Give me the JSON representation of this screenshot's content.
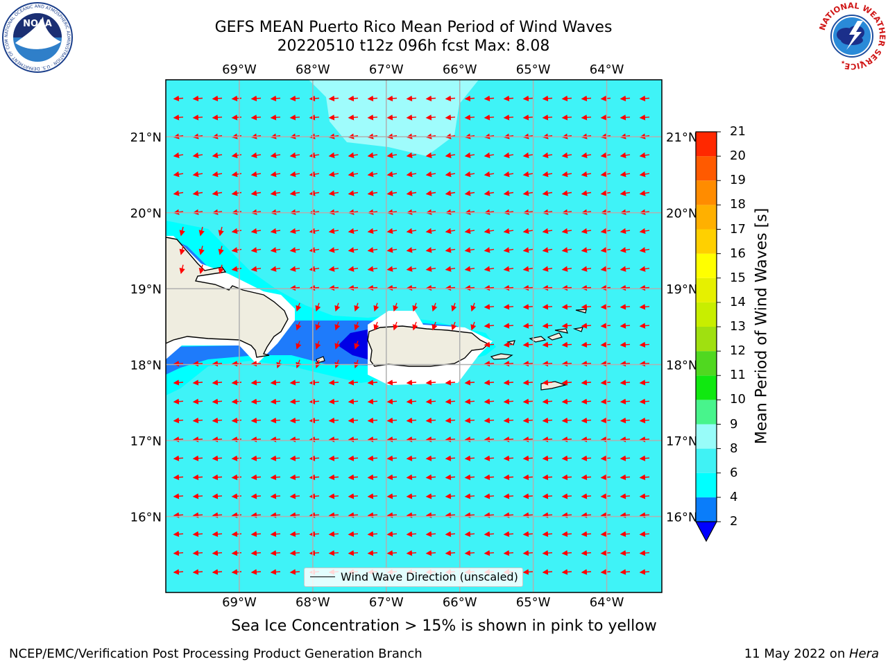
{
  "title": {
    "line1": "GEFS MEAN Puerto Rico Mean Period of Wind Waves",
    "line2": "20220510 t12z 096h fcst   Max: 8.08"
  },
  "map": {
    "lon_labels": [
      "69°W",
      "68°W",
      "67°W",
      "66°W",
      "65°W",
      "64°W"
    ],
    "lon_values": [
      -69,
      -68,
      -67,
      -66,
      -65,
      -64
    ],
    "lat_labels": [
      "21°N",
      "20°N",
      "19°N",
      "18°N",
      "17°N",
      "16°N"
    ],
    "lat_values": [
      21,
      20,
      19,
      18,
      17,
      16
    ],
    "lon_range": [
      -70,
      -63.25
    ],
    "lat_range": [
      15,
      21.75
    ],
    "colors": {
      "ocean": "#3ff3f7",
      "land": "#efede0",
      "wave_light": "#9ffcfc",
      "wave_cyan": "#00ffff",
      "wave_blue": "#1e7bfb",
      "wave_dark": "#0000e6",
      "arrow": "#ff0000",
      "grid": "#b0b0b0"
    }
  },
  "legend": {
    "label": "Wind Wave Direction (unscaled)"
  },
  "colorbar": {
    "title": "Mean Period of Wind Waves [s]",
    "ticks": [
      "2",
      "4",
      "6",
      "8",
      "9",
      "10",
      "11",
      "12",
      "13",
      "14",
      "15",
      "16",
      "17",
      "18",
      "19",
      "20",
      "21"
    ],
    "colors": [
      "#0a7dfa",
      "#00ffff",
      "#40f2f4",
      "#98fcf9",
      "#48f48c",
      "#10e810",
      "#50d820",
      "#a0e010",
      "#c8ee00",
      "#e6f000",
      "#ffff00",
      "#ffd000",
      "#ffb000",
      "#ff8c00",
      "#ff5a00",
      "#ff2800",
      "#ff0000"
    ],
    "under_color": "#0000ff"
  },
  "note": "Sea Ice Concentration > 15% is shown in pink to yellow",
  "footer": {
    "left": "NCEP/EMC/Verification Post Processing Product Generation Branch",
    "date": "11 May 2022 on ",
    "host": "Hera"
  },
  "logos": {
    "noaa_text": "NOAA",
    "noaa_ring": "NATIONAL OCEANIC AND ATMOSPHERIC ADMINISTRATION · U.S. DEPARTMENT OF COMMERCE",
    "nws_ring": "NATIONAL WEATHER SERVICE"
  }
}
